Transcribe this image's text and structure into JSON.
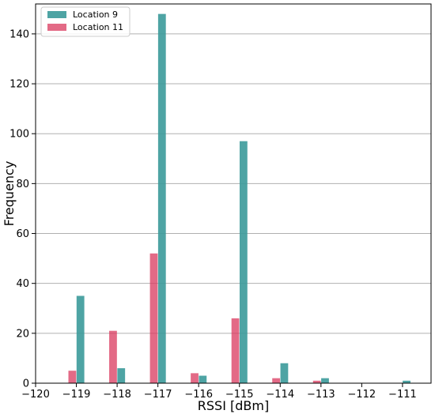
{
  "chart_data": {
    "type": "bar",
    "xlabel": "RSSI [dBm]",
    "ylabel": "Frequency",
    "xlim": [
      -120,
      -110.3
    ],
    "ylim": [
      0,
      152
    ],
    "xticks": [
      -120,
      -119,
      -118,
      -117,
      -116,
      -115,
      -114,
      -113,
      -112,
      -111
    ],
    "xtick_labels": [
      "−120",
      "−119",
      "−118",
      "−117",
      "−116",
      "−115",
      "−114",
      "−113",
      "−112",
      "−111"
    ],
    "yticks": [
      0,
      20,
      40,
      60,
      80,
      100,
      120,
      140
    ],
    "grid": "y",
    "legend_position": "top-left",
    "series": [
      {
        "name": "Location 9",
        "color": "#3b9a9a",
        "bars": [
          {
            "x": -119,
            "y": 35
          },
          {
            "x": -118,
            "y": 6
          },
          {
            "x": -117,
            "y": 148
          },
          {
            "x": -116,
            "y": 3
          },
          {
            "x": -115,
            "y": 97
          },
          {
            "x": -114,
            "y": 8
          },
          {
            "x": -113,
            "y": 2
          },
          {
            "x": -111,
            "y": 1
          }
        ]
      },
      {
        "name": "Location 11",
        "color": "#d9385e",
        "bars": [
          {
            "x": -119,
            "y": 5
          },
          {
            "x": -118,
            "y": 21
          },
          {
            "x": -117,
            "y": 52
          },
          {
            "x": -116,
            "y": 4
          },
          {
            "x": -115,
            "y": 26
          },
          {
            "x": -114,
            "y": 2
          },
          {
            "x": -113,
            "y": 1
          }
        ]
      }
    ]
  }
}
